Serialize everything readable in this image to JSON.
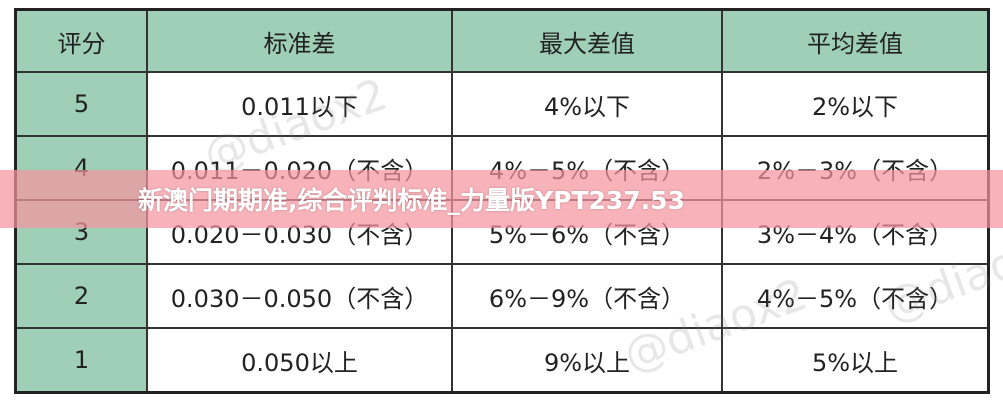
{
  "table": {
    "headers": [
      "评分",
      "标准差",
      "最大差值",
      "平均差值"
    ],
    "rows": [
      [
        "5",
        "0.011以下",
        "4%以下",
        "2%以下"
      ],
      [
        "4",
        "0.011－0.020（不含）",
        "4%－5%（不含）",
        "2%－3%（不含）"
      ],
      [
        "3",
        "0.020－0.030（不含）",
        "5%－6%（不含）",
        "3%－4%（不含）"
      ],
      [
        "2",
        "0.030－0.050（不含）",
        "6%－9%（不含）",
        "4%－5%（不含）"
      ],
      [
        "1",
        "0.050以上",
        "9%以上",
        "5%以上"
      ]
    ]
  },
  "watermark": "@diaox2",
  "banner": {
    "title": "新澳门期期准,综合评判标准_力量版YPT237.53"
  },
  "colors": {
    "header_bg": "#9fcfb7",
    "banner_bg": "#f596a0"
  }
}
